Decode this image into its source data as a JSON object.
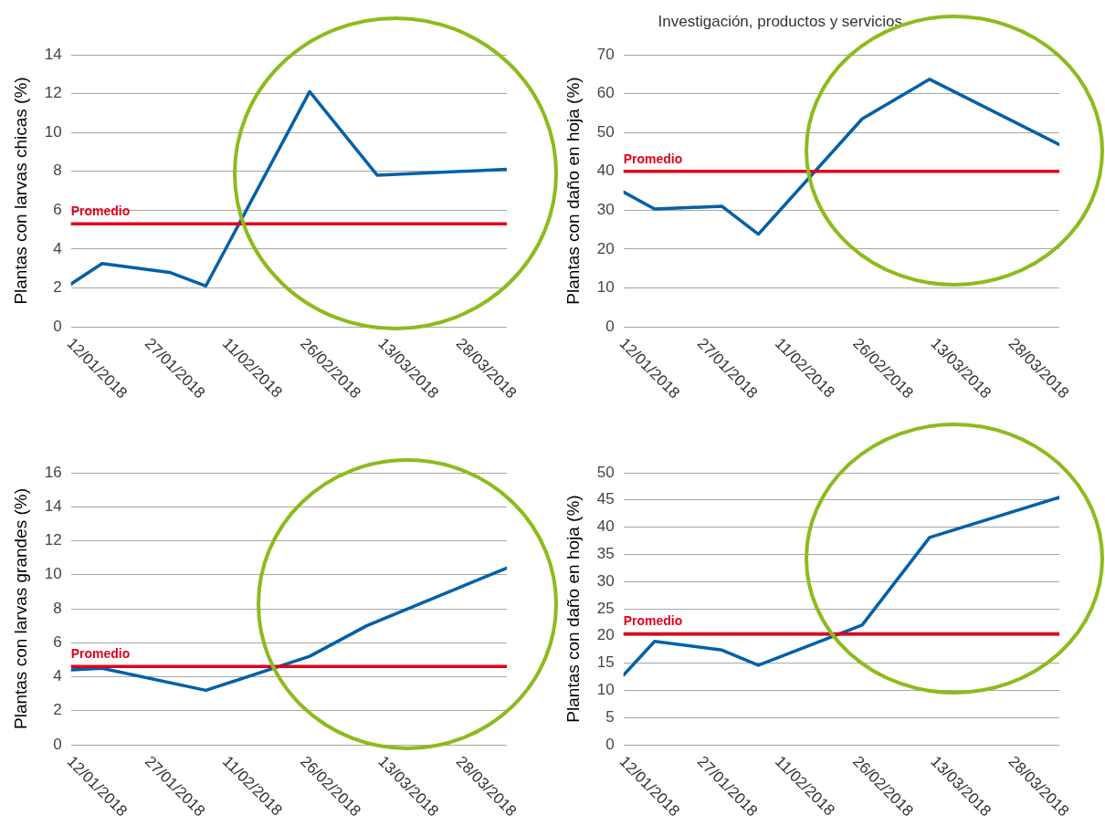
{
  "chart_data": [
    {
      "type": "line",
      "ylabel": "Plantas con larvas chicas (%)",
      "x": [
        "2018-01-12",
        "2018-01-18",
        "2018-01-31",
        "2018-02-07",
        "2018-02-27",
        "2018-03-12",
        "2018-04-06"
      ],
      "series": [
        {
          "color": "#0060a8",
          "values": [
            2.2,
            3.25,
            2.8,
            2.1,
            12.1,
            7.8,
            8.1
          ]
        }
      ],
      "xlim": [
        "2018-01-12",
        "2018-04-06"
      ],
      "xticks": [
        {
          "value": "2018-01-12",
          "label": "12/01/2018"
        },
        {
          "value": "2018-01-27",
          "label": "27/01/2018"
        },
        {
          "value": "2018-02-11",
          "label": "11/02/2018"
        },
        {
          "value": "2018-02-26",
          "label": "26/02/2018"
        },
        {
          "value": "2018-03-13",
          "label": "13/03/2018"
        },
        {
          "value": "2018-03-28",
          "label": "28/03/2018"
        }
      ],
      "ylim": [
        0,
        14
      ],
      "yticks": [
        0,
        2,
        4,
        6,
        8,
        10,
        12,
        14
      ],
      "ref_lines": [
        {
          "axis": "y",
          "value": 5.3,
          "label": "Promedio",
          "color": "#e2001a"
        }
      ],
      "grid": "y",
      "legend": false,
      "marker": "none",
      "line_style": "solid"
    },
    {
      "type": "line",
      "ylabel": "Plantas con daño en hoja (%)",
      "annotations": [
        "Investigación, productos y servicios"
      ],
      "x": [
        "2018-01-12",
        "2018-01-18",
        "2018-01-31",
        "2018-02-07",
        "2018-02-27",
        "2018-03-12",
        "2018-04-06"
      ],
      "series": [
        {
          "color": "#0060a8",
          "values": [
            34.7,
            30.3,
            31.0,
            23.8,
            53.5,
            63.7,
            46.9
          ]
        }
      ],
      "xlim": [
        "2018-01-12",
        "2018-04-06"
      ],
      "xticks": [
        {
          "value": "2018-01-12",
          "label": "12/01/2018"
        },
        {
          "value": "2018-01-27",
          "label": "27/01/2018"
        },
        {
          "value": "2018-02-11",
          "label": "11/02/2018"
        },
        {
          "value": "2018-02-26",
          "label": "26/02/2018"
        },
        {
          "value": "2018-03-13",
          "label": "13/03/2018"
        },
        {
          "value": "2018-03-28",
          "label": "28/03/2018"
        }
      ],
      "ylim": [
        0,
        70
      ],
      "yticks": [
        0,
        10,
        20,
        30,
        40,
        50,
        60,
        70
      ],
      "ref_lines": [
        {
          "axis": "y",
          "value": 40,
          "label": "Promedio",
          "color": "#e2001a"
        }
      ],
      "grid": "y",
      "legend": false,
      "marker": "none",
      "line_style": "solid"
    },
    {
      "type": "line",
      "ylabel": "Plantas con larvas grandes (%)",
      "x": [
        "2018-01-12",
        "2018-01-18",
        "2018-02-07",
        "2018-02-27",
        "2018-03-10",
        "2018-04-06"
      ],
      "series": [
        {
          "color": "#0060a8",
          "values": [
            4.4,
            4.5,
            3.2,
            5.2,
            7.0,
            10.4
          ]
        }
      ],
      "xlim": [
        "2018-01-12",
        "2018-04-06"
      ],
      "xticks": [
        {
          "value": "2018-01-12",
          "label": "12/01/2018"
        },
        {
          "value": "2018-01-27",
          "label": "27/01/2018"
        },
        {
          "value": "2018-02-11",
          "label": "11/02/2018"
        },
        {
          "value": "2018-02-26",
          "label": "26/02/2018"
        },
        {
          "value": "2018-03-13",
          "label": "13/03/2018"
        },
        {
          "value": "2018-03-28",
          "label": "28/03/2018"
        }
      ],
      "ylim": [
        0,
        16
      ],
      "yticks": [
        0,
        2,
        4,
        6,
        8,
        10,
        12,
        14,
        16
      ],
      "ref_lines": [
        {
          "axis": "y",
          "value": 4.6,
          "label": "Promedio",
          "color": "#e2001a"
        }
      ],
      "grid": "y",
      "legend": false,
      "marker": "none",
      "line_style": "solid"
    },
    {
      "type": "line",
      "ylabel": "Plantas con daño en hoja (%)",
      "x": [
        "2018-01-12",
        "2018-01-18",
        "2018-01-31",
        "2018-02-07",
        "2018-02-27",
        "2018-03-12",
        "2018-04-06"
      ],
      "series": [
        {
          "color": "#0060a8",
          "values": [
            12.8,
            19.0,
            17.4,
            14.6,
            22.0,
            38.1,
            45.5
          ]
        }
      ],
      "xlim": [
        "2018-01-12",
        "2018-04-06"
      ],
      "xticks": [
        {
          "value": "2018-01-12",
          "label": "12/01/2018"
        },
        {
          "value": "2018-01-27",
          "label": "27/01/2018"
        },
        {
          "value": "2018-02-11",
          "label": "11/02/2018"
        },
        {
          "value": "2018-02-26",
          "label": "26/02/2018"
        },
        {
          "value": "2018-03-13",
          "label": "13/03/2018"
        },
        {
          "value": "2018-03-28",
          "label": "28/03/2018"
        }
      ],
      "ylim": [
        0,
        50
      ],
      "yticks": [
        0,
        5,
        10,
        15,
        20,
        25,
        30,
        35,
        40,
        45,
        50
      ],
      "ref_lines": [
        {
          "axis": "y",
          "value": 20.4,
          "label": "Promedio",
          "color": "#e2001a"
        }
      ],
      "grid": "y",
      "legend": false,
      "marker": "none",
      "line_style": "solid"
    }
  ]
}
